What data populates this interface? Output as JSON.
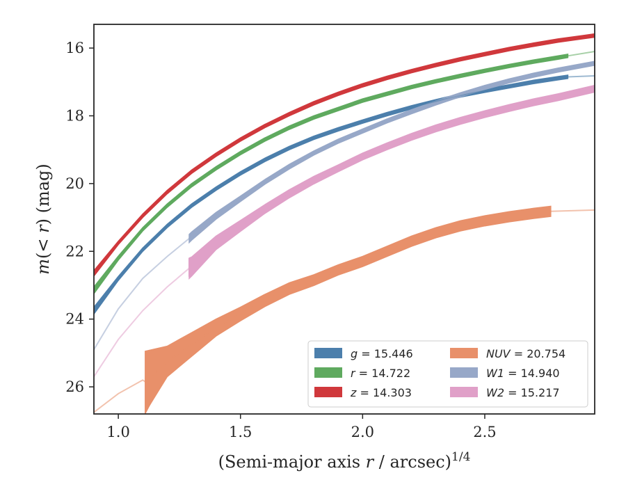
{
  "chart_data": {
    "type": "line",
    "xlabel_main": "(Semi-major axis ",
    "xlabel_var": "r",
    "xlabel_rest": " / arcsec)",
    "xlabel_exp": "1/4",
    "ylabel_main": "m",
    "ylabel_paren_open": "(< ",
    "ylabel_var": "r",
    "ylabel_rest": ") (mag)",
    "xlim": [
      0.9,
      2.95
    ],
    "ylim": [
      26.8,
      15.3
    ],
    "x_ticks": [
      {
        "value": 1.0,
        "label": "1.0"
      },
      {
        "value": 1.5,
        "label": "1.5"
      },
      {
        "value": 2.0,
        "label": "2.0"
      },
      {
        "value": 2.5,
        "label": "2.5"
      }
    ],
    "y_ticks": [
      {
        "value": 16,
        "label": "16"
      },
      {
        "value": 18,
        "label": "18"
      },
      {
        "value": 20,
        "label": "20"
      },
      {
        "value": 22,
        "label": "22"
      },
      {
        "value": 24,
        "label": "24"
      },
      {
        "value": 26,
        "label": "26"
      }
    ],
    "legend_position": "bottom-right",
    "series": [
      {
        "name": "g = 15.446",
        "name_var": "g",
        "name_value": "15.446",
        "color": "#4c7fac",
        "x": [
          0.9,
          1.0,
          1.1,
          1.2,
          1.3,
          1.4,
          1.5,
          1.6,
          1.7,
          1.8,
          1.9,
          2.0,
          2.1,
          2.2,
          2.3,
          2.4,
          2.5,
          2.6,
          2.7,
          2.8,
          2.84,
          2.95
        ],
        "y": [
          23.75,
          22.8,
          21.95,
          21.25,
          20.65,
          20.15,
          19.7,
          19.3,
          18.95,
          18.65,
          18.4,
          18.17,
          17.95,
          17.75,
          17.57,
          17.4,
          17.26,
          17.13,
          17.0,
          16.89,
          16.85,
          16.82
        ],
        "band": [
          0.1,
          0.06,
          0.05,
          0.05,
          0.05,
          0.05,
          0.05,
          0.05,
          0.05,
          0.05,
          0.05,
          0.05,
          0.05,
          0.05,
          0.05,
          0.05,
          0.05,
          0.05,
          0.05,
          0.05,
          0.05,
          0.05
        ],
        "solid_until": 2.84
      },
      {
        "name": "r = 14.722",
        "name_var": "r",
        "name_value": "14.722",
        "color": "#5faa5f",
        "x": [
          0.9,
          1.0,
          1.1,
          1.2,
          1.3,
          1.4,
          1.5,
          1.6,
          1.7,
          1.8,
          1.9,
          2.0,
          2.1,
          2.2,
          2.3,
          2.4,
          2.5,
          2.6,
          2.7,
          2.8,
          2.84,
          2.95
        ],
        "y": [
          23.15,
          22.2,
          21.35,
          20.65,
          20.05,
          19.55,
          19.1,
          18.7,
          18.35,
          18.05,
          17.8,
          17.55,
          17.35,
          17.15,
          16.98,
          16.82,
          16.67,
          16.53,
          16.4,
          16.28,
          16.23,
          16.1
        ],
        "band": [
          0.1,
          0.06,
          0.05,
          0.05,
          0.05,
          0.05,
          0.05,
          0.05,
          0.05,
          0.05,
          0.05,
          0.05,
          0.05,
          0.05,
          0.05,
          0.05,
          0.05,
          0.05,
          0.05,
          0.05,
          0.05,
          0.05
        ],
        "solid_until": 2.84
      },
      {
        "name": "z = 14.303",
        "name_var": "z",
        "name_value": "14.303",
        "color": "#d0383c",
        "x": [
          0.9,
          1.0,
          1.1,
          1.2,
          1.3,
          1.4,
          1.5,
          1.6,
          1.7,
          1.8,
          1.9,
          2.0,
          2.1,
          2.2,
          2.3,
          2.4,
          2.5,
          2.6,
          2.7,
          2.8,
          2.9,
          2.95
        ],
        "y": [
          22.65,
          21.75,
          20.95,
          20.25,
          19.65,
          19.15,
          18.7,
          18.3,
          17.95,
          17.63,
          17.35,
          17.1,
          16.88,
          16.68,
          16.5,
          16.33,
          16.18,
          16.03,
          15.9,
          15.78,
          15.68,
          15.63
        ],
        "band": [
          0.08,
          0.05,
          0.05,
          0.05,
          0.05,
          0.05,
          0.05,
          0.05,
          0.05,
          0.05,
          0.05,
          0.05,
          0.05,
          0.05,
          0.05,
          0.05,
          0.05,
          0.05,
          0.05,
          0.05,
          0.05,
          0.05
        ],
        "solid_until": 2.95
      },
      {
        "name": "NUV = 20.754",
        "name_var": "NUV",
        "name_value": "20.754",
        "color": "#e8906a",
        "x": [
          0.9,
          1.0,
          1.1,
          1.11,
          1.2,
          1.3,
          1.4,
          1.5,
          1.6,
          1.7,
          1.8,
          1.9,
          2.0,
          2.1,
          2.2,
          2.3,
          2.4,
          2.5,
          2.6,
          2.7,
          2.77,
          2.95
        ],
        "y": [
          26.75,
          26.2,
          25.8,
          25.85,
          25.25,
          24.75,
          24.25,
          23.85,
          23.45,
          23.1,
          22.85,
          22.55,
          22.3,
          22.0,
          21.7,
          21.45,
          21.25,
          21.1,
          20.98,
          20.88,
          20.82,
          20.78
        ],
        "band": [
          0.0,
          0.0,
          0.0,
          0.9,
          0.45,
          0.35,
          0.25,
          0.2,
          0.18,
          0.17,
          0.16,
          0.15,
          0.15,
          0.15,
          0.15,
          0.15,
          0.15,
          0.15,
          0.15,
          0.15,
          0.15,
          0.0
        ],
        "solid_from": 1.11,
        "solid_until": 2.77
      },
      {
        "name": "W1 = 14.940",
        "name_var": "W1",
        "name_value": "14.940",
        "color": "#97a8c8",
        "x": [
          0.9,
          1.0,
          1.1,
          1.2,
          1.29,
          1.3,
          1.4,
          1.5,
          1.6,
          1.7,
          1.8,
          1.9,
          2.0,
          2.1,
          2.2,
          2.3,
          2.4,
          2.5,
          2.6,
          2.7,
          2.8,
          2.95
        ],
        "y": [
          24.9,
          23.7,
          22.8,
          22.15,
          21.62,
          21.55,
          20.95,
          20.45,
          19.95,
          19.5,
          19.1,
          18.75,
          18.45,
          18.15,
          17.88,
          17.62,
          17.38,
          17.16,
          16.97,
          16.8,
          16.65,
          16.45
        ],
        "band": [
          0.0,
          0.0,
          0.0,
          0.0,
          0.12,
          0.12,
          0.1,
          0.08,
          0.07,
          0.07,
          0.06,
          0.06,
          0.06,
          0.06,
          0.06,
          0.06,
          0.06,
          0.06,
          0.06,
          0.06,
          0.06,
          0.06
        ],
        "solid_from": 1.29,
        "solid_until": 2.95
      },
      {
        "name": "W2 = 15.217",
        "name_var": "W2",
        "name_value": "15.217",
        "color": "#e0a0c8",
        "x": [
          0.9,
          1.0,
          1.1,
          1.2,
          1.29,
          1.3,
          1.4,
          1.5,
          1.6,
          1.7,
          1.8,
          1.9,
          2.0,
          2.1,
          2.2,
          2.3,
          2.4,
          2.5,
          2.6,
          2.7,
          2.8,
          2.95
        ],
        "y": [
          25.7,
          24.6,
          23.75,
          23.05,
          22.5,
          22.45,
          21.75,
          21.25,
          20.75,
          20.3,
          19.9,
          19.55,
          19.2,
          18.9,
          18.62,
          18.37,
          18.15,
          17.95,
          17.77,
          17.6,
          17.45,
          17.2
        ],
        "band": [
          0.0,
          0.0,
          0.0,
          0.0,
          0.3,
          0.28,
          0.2,
          0.16,
          0.13,
          0.12,
          0.11,
          0.1,
          0.1,
          0.1,
          0.1,
          0.1,
          0.1,
          0.1,
          0.1,
          0.1,
          0.1,
          0.1
        ],
        "solid_from": 1.29,
        "solid_until": 2.95
      }
    ]
  }
}
